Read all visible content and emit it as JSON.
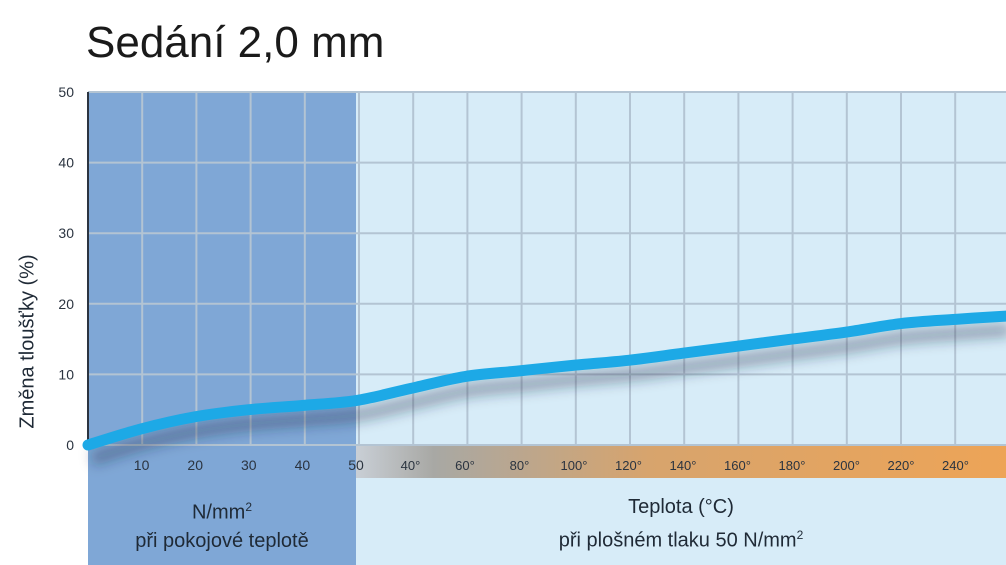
{
  "title": "Sedání 2,0 mm",
  "colors": {
    "left_panel": "#7fa7d6",
    "right_panel": "#d7ecf8",
    "grid": "#b3c4d3",
    "line": "#1da9e6",
    "temp_band": "#eda457"
  },
  "chart_data": {
    "type": "line",
    "title": "Sedání 2,0 mm",
    "ylabel": "Změna tloušťky (%)",
    "ylim": [
      0,
      50
    ],
    "y_ticks": [
      "0",
      "10",
      "20",
      "30",
      "40",
      "50"
    ],
    "grid": true,
    "segments": [
      {
        "label_line1": "N/mm",
        "label_sup": "2",
        "label_line2": "při pokojové teplotě",
        "xlabel": "N/mm²",
        "x_ticks": [
          "10",
          "20",
          "30",
          "40",
          "50"
        ],
        "xlim": [
          0,
          50
        ],
        "x": [
          0,
          10,
          20,
          30,
          40,
          50
        ],
        "y": [
          0,
          2.3,
          4.0,
          5.0,
          5.6,
          6.3
        ]
      },
      {
        "label_line1": "Teplota (°C)",
        "label_line2_pre": "při plošném tlaku 50 N/mm",
        "label_sup": "2",
        "xlabel": "Teplota (°C)",
        "x_ticks": [
          "40°",
          "60°",
          "80°",
          "100°",
          "120°",
          "140°",
          "160°",
          "180°",
          "200°",
          "220°",
          "240°"
        ],
        "x": [
          20,
          40,
          60,
          80,
          100,
          120,
          140,
          160,
          180,
          200,
          220,
          240,
          260
        ],
        "y": [
          6.3,
          8.0,
          9.7,
          10.5,
          11.3,
          12.0,
          13.0,
          14.0,
          15.0,
          16.0,
          17.2,
          17.8,
          18.3
        ]
      }
    ]
  }
}
